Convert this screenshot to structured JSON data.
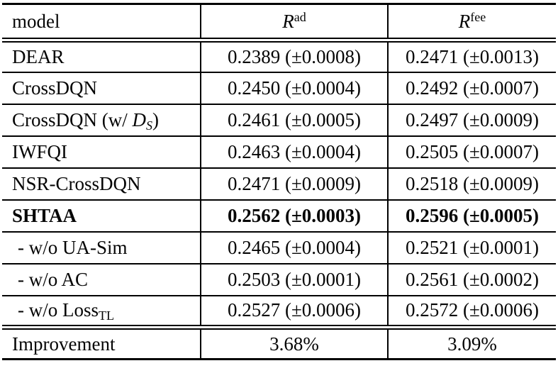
{
  "table": {
    "header": {
      "model": "model",
      "r_ad_base": "R",
      "r_ad_sup": "ad",
      "r_fee_base": "R",
      "r_fee_sup": "fee"
    },
    "rows": [
      {
        "model": "DEAR",
        "r_ad": "0.2389 (±0.0008)",
        "r_fee": "0.2471 (±0.0013)"
      },
      {
        "model": "CrossDQN",
        "r_ad": "0.2450 (±0.0004)",
        "r_fee": "0.2492 (±0.0007)"
      },
      {
        "model_pre": "CrossDQN (w/ ",
        "model_cal": "D",
        "model_sub": "S",
        "model_post": ")",
        "r_ad": "0.2461 (±0.0005)",
        "r_fee": "0.2497 (±0.0009)"
      },
      {
        "model": "IWFQI",
        "r_ad": "0.2463 (±0.0004)",
        "r_fee": "0.2505 (±0.0007)"
      },
      {
        "model": "NSR-CrossDQN",
        "r_ad": "0.2471 (±0.0009)",
        "r_fee": "0.2518 (±0.0009)"
      },
      {
        "model": "SHTAA",
        "r_ad": "0.2562 (±0.0003)",
        "r_fee": "0.2596 (±0.0005)"
      },
      {
        "model": "- w/o UA-Sim",
        "r_ad": "0.2465 (±0.0004)",
        "r_fee": "0.2521 (±0.0001)"
      },
      {
        "model": "- w/o AC",
        "r_ad": "0.2503 (±0.0001)",
        "r_fee": "0.2561 (±0.0002)"
      },
      {
        "model_pre": "- w/o Loss",
        "model_sub": "TL",
        "r_ad": "0.2527 (±0.0006)",
        "r_fee": "0.2572 (±0.0006)"
      }
    ],
    "footer": {
      "label": "Improvement",
      "r_ad": "3.68%",
      "r_fee": "3.09%"
    }
  },
  "colors": {
    "background": "#ffffff",
    "text": "#050505",
    "rule": "#000000"
  }
}
